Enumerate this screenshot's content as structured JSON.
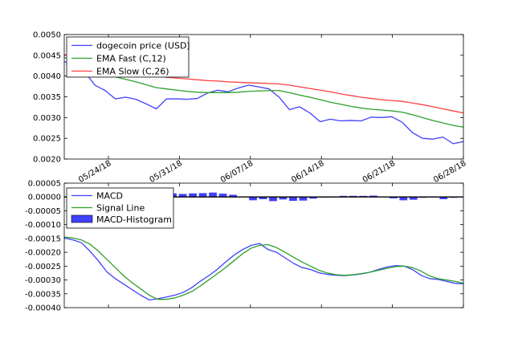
{
  "chart_data": [
    {
      "type": "line",
      "title": "",
      "xlabel": "",
      "ylabel": "",
      "ylim": [
        0.002,
        0.005
      ],
      "yticks": [
        "0.0020",
        "0.0025",
        "0.0030",
        "0.0035",
        "0.0040",
        "0.0045",
        "0.0050"
      ],
      "x_tick_labels": [
        "05/24/18",
        "05/31/18",
        "06/07/18",
        "06/14/18",
        "06/21/18",
        "06/28/18"
      ],
      "legend": "top-left",
      "series": [
        {
          "name": "dogecoin price (USD)",
          "color": "#4040ff",
          "values": [
            0.00435,
            0.00425,
            0.0041,
            0.00378,
            0.00365,
            0.00345,
            0.00349,
            0.00344,
            0.00333,
            0.00321,
            0.00345,
            0.00345,
            0.00344,
            0.00346,
            0.00359,
            0.00366,
            0.00362,
            0.00371,
            0.00378,
            0.00374,
            0.00369,
            0.00349,
            0.00319,
            0.00326,
            0.00311,
            0.0029,
            0.00296,
            0.00292,
            0.00293,
            0.00292,
            0.00301,
            0.003,
            0.00302,
            0.00289,
            0.00264,
            0.0025,
            0.00248,
            0.00253,
            0.00237,
            0.00242
          ]
        },
        {
          "name": "EMA Fast (C,12)",
          "color": "#2ca02c",
          "values": [
            0.00445,
            0.00435,
            0.00425,
            0.00412,
            0.00403,
            0.00398,
            0.00392,
            0.00386,
            0.00379,
            0.00372,
            0.00369,
            0.00366,
            0.00363,
            0.00361,
            0.0036,
            0.0036,
            0.0036,
            0.00361,
            0.00363,
            0.00364,
            0.00365,
            0.00365,
            0.0036,
            0.00354,
            0.00349,
            0.00343,
            0.00337,
            0.00332,
            0.00327,
            0.00323,
            0.0032,
            0.00318,
            0.00316,
            0.00313,
            0.00307,
            0.003,
            0.00293,
            0.00287,
            0.00281,
            0.00277
          ]
        },
        {
          "name": "EMA Slow (C,26)",
          "color": "#ff4040",
          "values": [
            0.00452,
            0.00445,
            0.00438,
            0.00431,
            0.00425,
            0.0042,
            0.00415,
            0.0041,
            0.00405,
            0.004,
            0.00397,
            0.00395,
            0.00393,
            0.00391,
            0.00389,
            0.00388,
            0.00386,
            0.00385,
            0.00384,
            0.00383,
            0.00382,
            0.00381,
            0.00378,
            0.00374,
            0.0037,
            0.00366,
            0.00362,
            0.00357,
            0.00353,
            0.00349,
            0.00346,
            0.00343,
            0.00341,
            0.00339,
            0.00335,
            0.00331,
            0.00326,
            0.00321,
            0.00316,
            0.00311
          ]
        }
      ]
    },
    {
      "type": "line",
      "title": "",
      "xlabel": "",
      "ylabel": "",
      "ylim": [
        -0.0004,
        5e-05
      ],
      "yticks": [
        "0.00005",
        "0.00000",
        "-0.00005",
        "-0.00010",
        "-0.00015",
        "-0.00020",
        "-0.00025",
        "-0.00030",
        "-0.00035",
        "-0.00040"
      ],
      "legend": "top-left",
      "series": [
        {
          "name": "MACD",
          "color": "#4040ff",
          "values": [
            -0.000148,
            -0.000155,
            -0.000165,
            -0.000195,
            -0.00023,
            -0.00027,
            -0.000295,
            -0.000315,
            -0.000335,
            -0.000355,
            -0.000372,
            -0.000368,
            -0.000362,
            -0.000355,
            -0.000345,
            -0.000328,
            -0.000305,
            -0.000285,
            -0.000262,
            -0.000235,
            -0.00021,
            -0.00019,
            -0.000175,
            -0.000168,
            -0.00019,
            -0.0002,
            -0.00022,
            -0.00024,
            -0.000255,
            -0.000262,
            -0.000274,
            -0.00028,
            -0.000283,
            -0.000284,
            -0.000282,
            -0.000278,
            -0.000272,
            -0.000262,
            -0.000253,
            -0.000248,
            -0.00025,
            -0.000262,
            -0.000283,
            -0.000295,
            -0.000298,
            -0.000305,
            -0.000312,
            -0.000314
          ]
        },
        {
          "name": "Signal Line",
          "color": "#2ca02c",
          "values": [
            -0.000145,
            -0.000148,
            -0.000155,
            -0.00017,
            -0.000195,
            -0.000225,
            -0.000255,
            -0.000285,
            -0.00031,
            -0.000332,
            -0.000355,
            -0.00037,
            -0.00037,
            -0.000365,
            -0.000355,
            -0.000342,
            -0.000322,
            -0.0003,
            -0.000278,
            -0.000255,
            -0.00023,
            -0.000205,
            -0.000185,
            -0.000175,
            -0.000172,
            -0.000183,
            -0.0002,
            -0.000218,
            -0.000235,
            -0.00025,
            -0.000265,
            -0.000275,
            -0.000281,
            -0.000283,
            -0.000281,
            -0.000277,
            -0.000272,
            -0.000265,
            -0.000258,
            -0.000252,
            -0.00025,
            -0.000255,
            -0.000268,
            -0.000285,
            -0.000295,
            -0.0003,
            -0.000305,
            -0.000312
          ]
        },
        {
          "name": "MACD-Histogram",
          "type": "bar",
          "color": "#4040ff",
          "values": [
            0,
            0,
            0,
            0,
            0,
            0,
            5e-06,
            5e-06,
            6e-06,
            1.2e-05,
            1.3e-05,
            1.1e-05,
            1.3e-05,
            1.4e-05,
            1.6e-05,
            1.2e-05,
            8e-06,
            2e-06,
            -1.2e-05,
            -8e-06,
            -1.5e-05,
            -9e-06,
            -1.4e-05,
            -1.3e-05,
            -6e-06,
            -2e-06,
            -2e-06,
            4e-06,
            4e-06,
            4e-06,
            5e-06,
            2e-06,
            -5e-06,
            -1.2e-05,
            -1e-05,
            -3e-06,
            -2e-06,
            -8e-06,
            -3e-06
          ]
        }
      ]
    }
  ]
}
